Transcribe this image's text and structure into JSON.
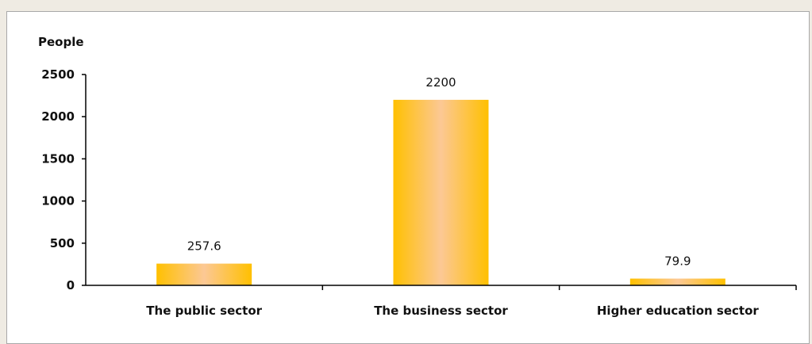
{
  "chart_data": {
    "type": "bar",
    "ylabel": "People",
    "categories": [
      "The public sector",
      "The business sector",
      "Higher education sector"
    ],
    "values": [
      257.6,
      2200,
      79.9
    ],
    "data_labels": [
      "257.6",
      "2200",
      "79.9"
    ],
    "ylim": [
      0,
      2500
    ],
    "yticks": [
      0,
      500,
      1000,
      1500,
      2000,
      2500
    ],
    "ytick_labels": [
      "0",
      "500",
      "1000",
      "1500",
      "2000",
      "2500"
    ],
    "grid": false,
    "legend": "none",
    "colors": {
      "bar_edge": "#ffc000",
      "bar_center": "#fcc895",
      "axis": "#000000"
    }
  }
}
